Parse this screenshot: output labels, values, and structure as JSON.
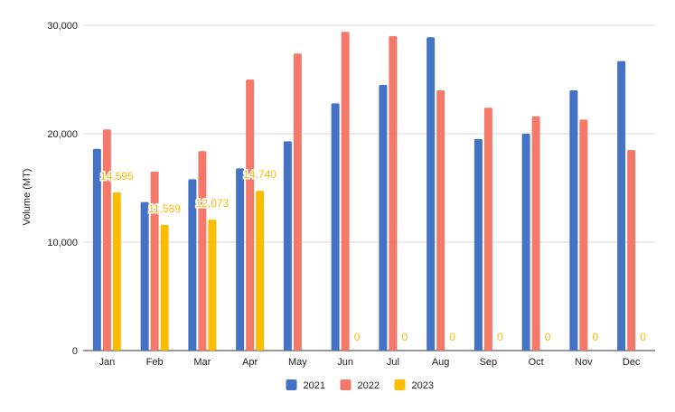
{
  "chart_data": {
    "type": "bar",
    "title": "",
    "xlabel": "",
    "ylabel": "Volume (MT)",
    "ylim": [
      0,
      30000
    ],
    "yticks": [
      "0",
      "10,000",
      "20,000",
      "30,000"
    ],
    "grid": true,
    "legend_position": "bottom",
    "categories": [
      "Jan",
      "Feb",
      "Mar",
      "Apr",
      "May",
      "Jun",
      "Jul",
      "Aug",
      "Sep",
      "Oct",
      "Nov",
      "Dec"
    ],
    "series": [
      {
        "name": "2021",
        "color": "#4472c4",
        "values": [
          18600,
          13700,
          15800,
          16800,
          19300,
          22800,
          24500,
          28900,
          19500,
          20000,
          24000,
          26700
        ]
      },
      {
        "name": "2022",
        "color": "#f4796b",
        "values": [
          20400,
          16500,
          18400,
          25000,
          27400,
          29400,
          29000,
          24000,
          22400,
          21600,
          21300,
          18500
        ]
      },
      {
        "name": "2023",
        "color": "#fbbc04",
        "values": [
          14595,
          11589,
          12073,
          14740,
          0,
          0,
          0,
          0,
          0,
          0,
          0,
          0
        ],
        "data_labels": [
          "14,595",
          "11,589",
          "12,073",
          "14,740",
          "",
          "0",
          "0",
          "0",
          "0",
          "0",
          "0",
          "0"
        ]
      }
    ]
  }
}
